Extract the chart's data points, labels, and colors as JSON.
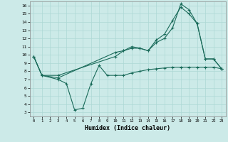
{
  "xlabel": "Humidex (Indice chaleur)",
  "bg_color": "#cceae8",
  "line_color": "#1a6b5a",
  "grid_color": "#add8d5",
  "xlim": [
    -0.5,
    23.5
  ],
  "ylim": [
    2.5,
    16.5
  ],
  "xticks": [
    0,
    1,
    2,
    3,
    4,
    5,
    6,
    7,
    8,
    9,
    10,
    11,
    12,
    13,
    14,
    15,
    16,
    17,
    18,
    19,
    20,
    21,
    22,
    23
  ],
  "yticks": [
    3,
    4,
    5,
    6,
    7,
    8,
    9,
    10,
    11,
    12,
    13,
    14,
    15,
    16
  ],
  "line1_x": [
    0,
    1,
    3,
    4,
    5,
    6,
    7,
    8,
    9,
    10,
    11,
    12,
    13,
    14,
    15,
    16,
    17,
    18,
    19,
    20,
    21,
    22,
    23
  ],
  "line1_y": [
    9.8,
    7.5,
    7.0,
    6.5,
    3.3,
    3.5,
    6.5,
    8.7,
    7.5,
    7.5,
    7.5,
    7.8,
    8.0,
    8.2,
    8.3,
    8.4,
    8.5,
    8.5,
    8.5,
    8.5,
    8.5,
    8.5,
    8.3
  ],
  "line2_x": [
    0,
    1,
    3,
    10,
    11,
    12,
    13,
    14,
    15,
    16,
    17,
    18,
    19,
    20,
    21,
    22,
    23
  ],
  "line2_y": [
    9.8,
    7.5,
    7.5,
    9.8,
    10.5,
    10.8,
    10.8,
    10.5,
    11.5,
    12.0,
    13.3,
    16.2,
    15.5,
    13.8,
    9.5,
    9.5,
    8.3
  ],
  "line3_x": [
    0,
    1,
    3,
    10,
    11,
    12,
    13,
    14,
    15,
    16,
    17,
    18,
    19,
    20,
    21,
    22,
    23
  ],
  "line3_y": [
    9.8,
    7.5,
    7.2,
    10.3,
    10.5,
    11.0,
    10.8,
    10.5,
    11.8,
    12.5,
    14.2,
    15.8,
    15.0,
    13.8,
    9.5,
    9.5,
    8.3
  ]
}
